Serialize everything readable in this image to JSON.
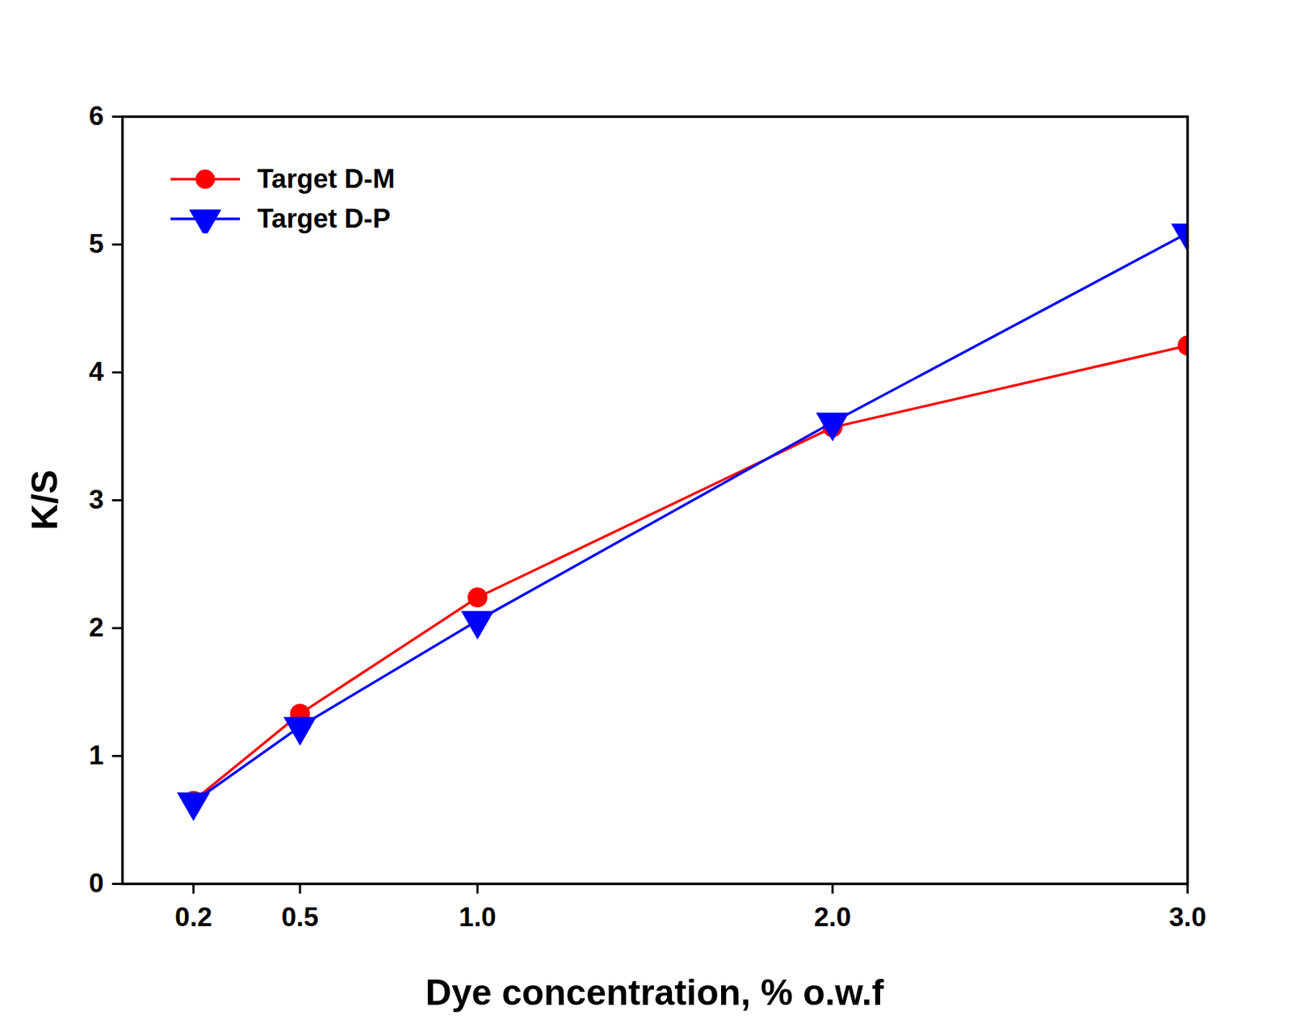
{
  "chart_data": {
    "type": "line",
    "x_label": "Dye concentration, % o.w.f",
    "y_label": "K/S",
    "x": [
      0.2,
      0.5,
      1.0,
      2.0,
      3.0
    ],
    "series": [
      {
        "name": "Target D-M",
        "color": "#ff0000",
        "marker": "circle",
        "values": [
          0.65,
          1.33,
          2.24,
          3.57,
          4.21
        ]
      },
      {
        "name": "Target D-P",
        "color": "#0000ff",
        "marker": "triangle-down",
        "values": [
          0.64,
          1.23,
          2.06,
          3.61,
          5.09
        ]
      }
    ],
    "xlim": [
      0,
      3.0
    ],
    "xticks": [
      0.2,
      0.5,
      {
        "value": 1.0,
        "label": "1.0"
      },
      {
        "value": 2.0,
        "label": "2.0"
      },
      {
        "value": 3.0,
        "label": "3.0"
      }
    ],
    "ylim": [
      0,
      6
    ],
    "yticks": [
      0,
      1,
      2,
      3,
      4,
      5,
      6
    ],
    "grid": false,
    "legend": "top-left"
  }
}
